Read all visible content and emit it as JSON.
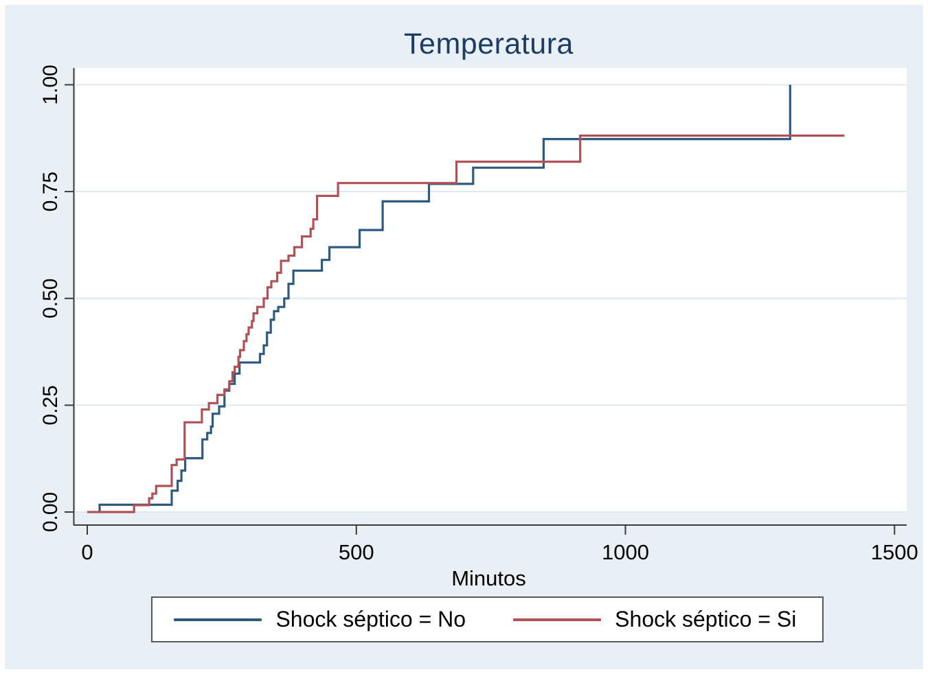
{
  "chart_data": {
    "type": "line",
    "subtype": "kaplan-meier-step",
    "title": "Temperatura",
    "xlabel": "Minutos",
    "ylabel": "",
    "xlim": [
      0,
      1500
    ],
    "ylim": [
      0,
      1
    ],
    "x_ticks": [
      0,
      500,
      1000,
      1500
    ],
    "y_ticks": [
      {
        "v": 0.0,
        "label": "0.00"
      },
      {
        "v": 0.25,
        "label": "0.25"
      },
      {
        "v": 0.5,
        "label": "0.50"
      },
      {
        "v": 0.75,
        "label": "0.75"
      },
      {
        "v": 1.0,
        "label": "1.00"
      }
    ],
    "grid": true,
    "legend_position": "bottom",
    "series": [
      {
        "name": "Shock séptico = No",
        "color": "#2e5a80",
        "end_t": 1306,
        "steps": [
          [
            23,
            0
          ],
          [
            23,
            0.017
          ],
          [
            157,
            0.05
          ],
          [
            168,
            0.073
          ],
          [
            175,
            0.097
          ],
          [
            182,
            0.126
          ],
          [
            214,
            0.17
          ],
          [
            223,
            0.185
          ],
          [
            230,
            0.2
          ],
          [
            233,
            0.23
          ],
          [
            245,
            0.247
          ],
          [
            255,
            0.284
          ],
          [
            264,
            0.3
          ],
          [
            274,
            0.324
          ],
          [
            283,
            0.35
          ],
          [
            321,
            0.37
          ],
          [
            328,
            0.39
          ],
          [
            334,
            0.42
          ],
          [
            341,
            0.45
          ],
          [
            347,
            0.47
          ],
          [
            355,
            0.48
          ],
          [
            366,
            0.5
          ],
          [
            374,
            0.534
          ],
          [
            383,
            0.565
          ],
          [
            436,
            0.59
          ],
          [
            450,
            0.62
          ],
          [
            506,
            0.66
          ],
          [
            549,
            0.727
          ],
          [
            635,
            0.768
          ],
          [
            717,
            0.806
          ],
          [
            848,
            0.873
          ],
          [
            1306,
            1.0
          ]
        ]
      },
      {
        "name": "Shock séptico = Si",
        "color": "#ae5257",
        "end_t": 1407,
        "steps": [
          [
            0,
            0
          ],
          [
            87,
            0.016
          ],
          [
            115,
            0.032
          ],
          [
            121,
            0.043
          ],
          [
            128,
            0.061
          ],
          [
            157,
            0.11
          ],
          [
            166,
            0.123
          ],
          [
            181,
            0.21
          ],
          [
            213,
            0.24
          ],
          [
            226,
            0.255
          ],
          [
            242,
            0.274
          ],
          [
            255,
            0.287
          ],
          [
            264,
            0.306
          ],
          [
            270,
            0.327
          ],
          [
            274,
            0.34
          ],
          [
            281,
            0.363
          ],
          [
            284,
            0.379
          ],
          [
            291,
            0.4
          ],
          [
            296,
            0.416
          ],
          [
            300,
            0.432
          ],
          [
            306,
            0.447
          ],
          [
            309,
            0.465
          ],
          [
            316,
            0.48
          ],
          [
            328,
            0.5
          ],
          [
            335,
            0.526
          ],
          [
            342,
            0.54
          ],
          [
            353,
            0.56
          ],
          [
            360,
            0.588
          ],
          [
            374,
            0.6
          ],
          [
            385,
            0.62
          ],
          [
            399,
            0.645
          ],
          [
            415,
            0.663
          ],
          [
            420,
            0.685
          ],
          [
            427,
            0.74
          ],
          [
            466,
            0.77
          ],
          [
            686,
            0.82
          ],
          [
            916,
            0.881
          ]
        ]
      }
    ],
    "colors": {
      "background": "#e9f0f5",
      "plot_background": "#ffffff",
      "grid": "#dce9f3",
      "axis": "#3a3a3a",
      "title_text": "#1c3c64",
      "tick_text": "#000000",
      "legend_border": "#55585c"
    }
  }
}
